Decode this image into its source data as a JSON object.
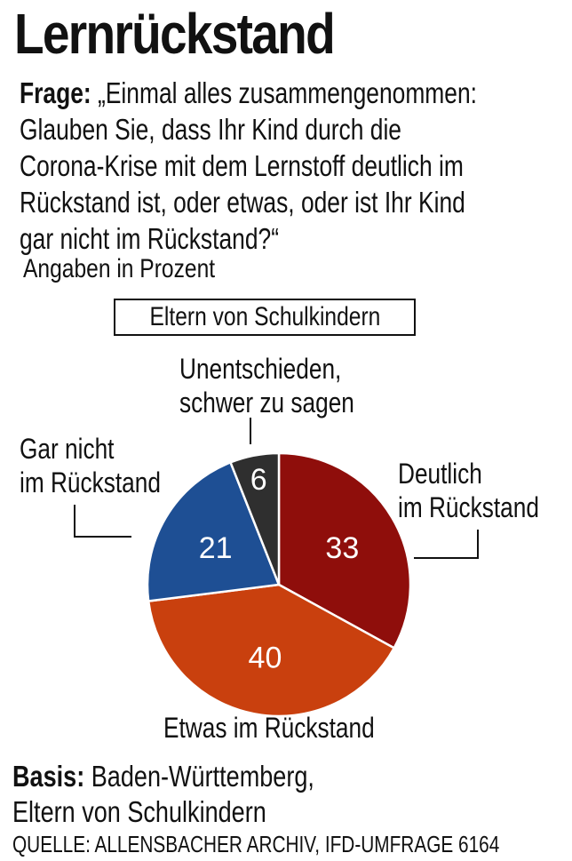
{
  "title": "Lernrückstand",
  "question": {
    "label": "Frage:",
    "lines": [
      "„Einmal alles zusammengenommen:",
      "Glauben Sie, dass Ihr Kind durch die",
      "Corona-Krise mit dem Lernstoff deutlich im",
      "Rückstand ist, oder etwas, oder ist Ihr Kind",
      "gar nicht im Rückstand?“"
    ]
  },
  "unit_note": "Angaben in Prozent",
  "group_label": "Eltern von Schulkindern",
  "chart_data": {
    "type": "pie",
    "slices": [
      {
        "label": "Deutlich im Rückstand",
        "label_lines": [
          "Deutlich",
          "im Rückstand"
        ],
        "value": 33,
        "color": "#8f0e0b"
      },
      {
        "label": "Etwas im Rückstand",
        "label_lines": [
          "Etwas im Rückstand"
        ],
        "value": 40,
        "color": "#c9400e"
      },
      {
        "label": "Gar nicht im Rückstand",
        "label_lines": [
          "Gar nicht",
          "im Rückstand"
        ],
        "value": 21,
        "color": "#1e4f94"
      },
      {
        "label": "Unentschieden, schwer zu sagen",
        "label_lines": [
          "Unentschieden,",
          "schwer zu sagen"
        ],
        "value": 6,
        "color": "#2f2f2f"
      }
    ]
  },
  "basis": {
    "label": "Basis:",
    "line1": "Baden-Württemberg,",
    "line2": "Eltern von Schulkindern"
  },
  "source": "QUELLE: ALLENSBACHER ARCHIV, IFD-UMFRAGE 6164"
}
